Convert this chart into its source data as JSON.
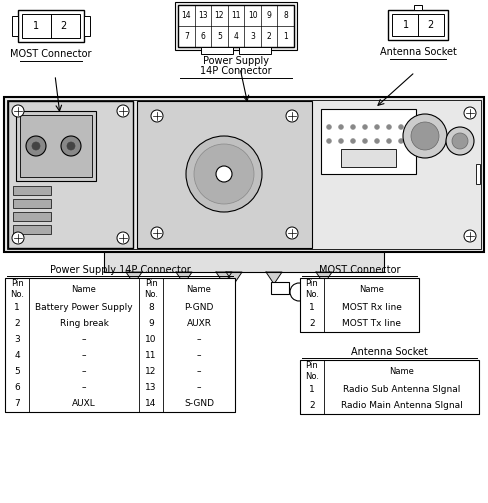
{
  "bg_color": "#ffffff",
  "line_color": "#000000",
  "power_table_title": "Power Supply 14P Connector",
  "most_table_title": "MOST Connector",
  "antenna_table_title": "Antenna Socket",
  "most_connector_label": "MOST Connector",
  "power_connector_label1": "Power Supply",
  "power_connector_label2": "14P Connector",
  "antenna_socket_label": "Antenna Socket",
  "power_table_data": [
    [
      "Pin\nNo.",
      "Name",
      "Pin\nNo.",
      "Name"
    ],
    [
      "1",
      "Battery Power Supply",
      "8",
      "P-GND"
    ],
    [
      "2",
      "Ring break",
      "9",
      "AUXR"
    ],
    [
      "3",
      "–",
      "10",
      "–"
    ],
    [
      "4",
      "–",
      "11",
      "–"
    ],
    [
      "5",
      "–",
      "12",
      "–"
    ],
    [
      "6",
      "–",
      "13",
      "–"
    ],
    [
      "7",
      "AUXL",
      "14",
      "S-GND"
    ]
  ],
  "most_table_data": [
    [
      "Pin\nNo.",
      "Name"
    ],
    [
      "1",
      "MOST Rx line"
    ],
    [
      "2",
      "MOST Tx line"
    ]
  ],
  "antenna_table_data": [
    [
      "Pin\nNo.",
      "Name"
    ],
    [
      "1",
      "Radio Sub Antenna SIgnal"
    ],
    [
      "2",
      "Radio Main Antenna SIgnal"
    ]
  ]
}
